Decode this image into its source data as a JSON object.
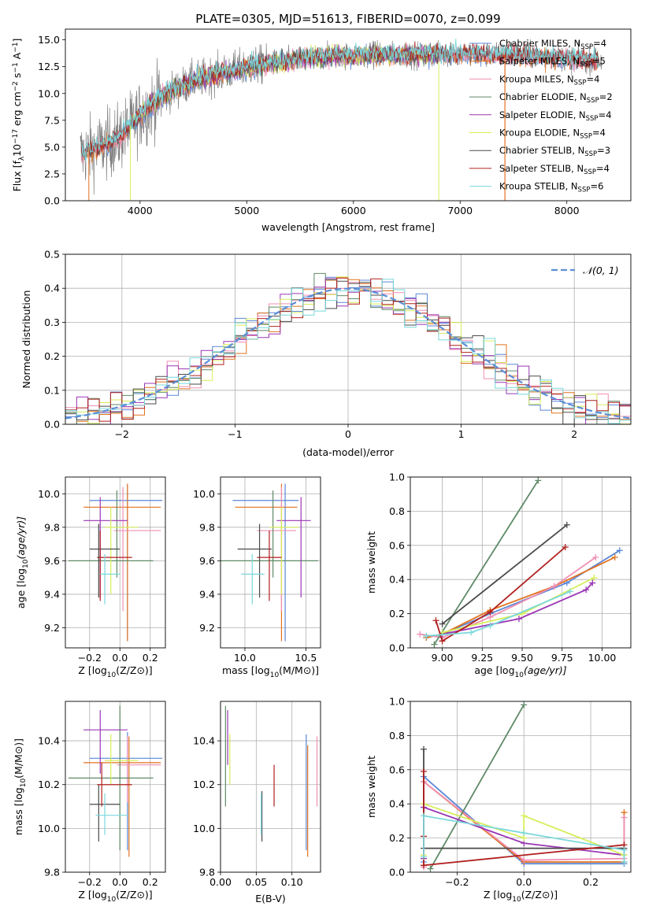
{
  "palette": {
    "Chabrier MILES": "#5b87d6",
    "Salpeter MILES": "#e2721e",
    "Kroupa MILES": "#f08fb4",
    "Chabrier ELODIE": "#5f8a67",
    "Salpeter ELODIE": "#9a36b4",
    "Kroupa ELODIE": "#d6ee5a",
    "Chabrier STELIB": "#4a4a4a",
    "Salpeter STELIB": "#b0201f",
    "Kroupa STELIB": "#7ad8dc",
    "data": "#808080",
    "normal": "#5b8fd6"
  },
  "chart_data": [
    {
      "id": "spectrum",
      "type": "line",
      "title": "PLATE=0305, MJD=51613, FIBERID=0070, z=0.099",
      "xlabel": "wavelength [Angstrom, rest frame]",
      "ylabel": "Flux [f",
      "xlim": [
        3300,
        8600
      ],
      "ylim": [
        0,
        16
      ],
      "xticks": [
        4000,
        5000,
        6000,
        7000,
        8000
      ],
      "yticks": [
        0.0,
        2.5,
        5.0,
        7.5,
        10.0,
        12.5,
        15.0
      ],
      "grid": false,
      "legend_position": "right",
      "continuum_knots": {
        "x": [
          3450,
          3600,
          3800,
          4000,
          4200,
          4500,
          4800,
          5100,
          5400,
          5800,
          6200,
          6600,
          7000,
          7500,
          8000,
          8300
        ],
        "y": [
          4.4,
          4.9,
          5.8,
          8.0,
          9.7,
          11.2,
          12.0,
          12.6,
          13.1,
          13.5,
          13.6,
          13.6,
          13.7,
          13.6,
          13.3,
          13.0
        ]
      },
      "legend": [
        {
          "label": "Chabrier MILES, N",
          "sub": "SSP",
          "tail": "=4",
          "color_key": "Chabrier MILES"
        },
        {
          "label": "Salpeter MILES, N",
          "sub": "SSP",
          "tail": "=5",
          "color_key": "Salpeter MILES"
        },
        {
          "label": "Kroupa MILES, N",
          "sub": "SSP",
          "tail": "=4",
          "color_key": "Kroupa MILES"
        },
        {
          "label": "Chabrier ELODIE, N",
          "sub": "SSP",
          "tail": "=2",
          "color_key": "Chabrier ELODIE"
        },
        {
          "label": "Salpeter ELODIE, N",
          "sub": "SSP",
          "tail": "=4",
          "color_key": "Salpeter ELODIE"
        },
        {
          "label": "Kroupa ELODIE, N",
          "sub": "SSP",
          "tail": "=4",
          "color_key": "Kroupa ELODIE"
        },
        {
          "label": "Chabrier STELIB, N",
          "sub": "SSP",
          "tail": "=3",
          "color_key": "Chabrier STELIB"
        },
        {
          "label": "Salpeter STELIB, N",
          "sub": "SSP",
          "tail": "=4",
          "color_key": "Salpeter STELIB"
        },
        {
          "label": "Kroupa STELIB, N",
          "sub": "SSP",
          "tail": "=6",
          "color_key": "Kroupa STELIB"
        }
      ]
    },
    {
      "id": "residuals",
      "type": "line",
      "xlabel": "(data-model)/error",
      "ylabel": "Normed distribution",
      "xlim": [
        -2.5,
        2.5
      ],
      "ylim": [
        0,
        0.5
      ],
      "xticks": [
        -2,
        -1,
        0,
        1,
        2
      ],
      "yticks": [
        0.0,
        0.1,
        0.2,
        0.3,
        0.4,
        0.5
      ],
      "grid": true,
      "legend_position": "top-right",
      "legend_label": "𝒩(0, 1)",
      "bin_width": 0.1
    },
    {
      "id": "age-vs-Z",
      "type": "scatter",
      "xlabel": "Z [log",
      "ylabel": "age  [log",
      "xlim": [
        -0.36,
        0.3
      ],
      "ylim": [
        9.08,
        10.1
      ],
      "xticks": [
        -0.2,
        0.0,
        0.2
      ],
      "yticks": [
        9.2,
        9.4,
        9.6,
        9.8,
        10.0
      ],
      "grid": true,
      "points": [
        {
          "c": "Chabrier MILES",
          "x": 0.05,
          "xlo": -0.2,
          "xhi": 0.28,
          "y": 9.96,
          "ylo": 9.12,
          "yhi": 10.06
        },
        {
          "c": "Salpeter MILES",
          "x": 0.05,
          "xlo": -0.24,
          "xhi": 0.27,
          "y": 9.92,
          "ylo": 9.12,
          "yhi": 10.06
        },
        {
          "c": "Kroupa MILES",
          "x": 0.02,
          "xlo": -0.04,
          "xhi": 0.27,
          "y": 9.78,
          "ylo": 9.3,
          "yhi": 10.04
        },
        {
          "c": "Chabrier ELODIE",
          "x": -0.02,
          "xlo": -0.34,
          "xhi": 0.22,
          "y": 9.6,
          "ylo": 9.5,
          "yhi": 10.02
        },
        {
          "c": "Salpeter ELODIE",
          "x": -0.13,
          "xlo": -0.24,
          "xhi": 0.05,
          "y": 9.84,
          "ylo": 9.38,
          "yhi": 9.98
        },
        {
          "c": "Kroupa ELODIE",
          "x": -0.06,
          "xlo": -0.1,
          "xhi": 0.12,
          "y": 9.8,
          "ylo": 9.4,
          "yhi": 9.92
        },
        {
          "c": "Chabrier STELIB",
          "x": -0.14,
          "xlo": -0.2,
          "xhi": 0.0,
          "y": 9.67,
          "ylo": 9.38,
          "yhi": 9.82
        },
        {
          "c": "Salpeter STELIB",
          "x": -0.13,
          "xlo": -0.15,
          "xhi": 0.08,
          "y": 9.62,
          "ylo": 9.36,
          "yhi": 9.78
        },
        {
          "c": "Kroupa STELIB",
          "x": -0.1,
          "xlo": -0.13,
          "xhi": 0.0,
          "y": 9.52,
          "ylo": 9.34,
          "yhi": 9.64
        }
      ]
    },
    {
      "id": "age-vs-mass",
      "type": "scatter",
      "xlabel": "mass [log",
      "ylabel": "",
      "xlim": [
        9.8,
        10.62
      ],
      "ylim": [
        9.08,
        10.1
      ],
      "xticks": [
        10.0,
        10.5
      ],
      "yticks": [
        9.2,
        9.4,
        9.6,
        9.8,
        10.0
      ],
      "grid": true,
      "points": [
        {
          "c": "Chabrier MILES",
          "x": 10.33,
          "xlo": 9.9,
          "xhi": 10.44,
          "y": 9.96,
          "ylo": 9.12,
          "yhi": 10.06
        },
        {
          "c": "Salpeter MILES",
          "x": 10.3,
          "xlo": 9.92,
          "xhi": 10.43,
          "y": 9.92,
          "ylo": 9.12,
          "yhi": 10.06
        },
        {
          "c": "Kroupa MILES",
          "x": 10.3,
          "xlo": 10.1,
          "xhi": 10.42,
          "y": 9.78,
          "ylo": 9.3,
          "yhi": 10.04
        },
        {
          "c": "Chabrier ELODIE",
          "x": 10.23,
          "xlo": 9.8,
          "xhi": 10.6,
          "y": 9.6,
          "ylo": 9.5,
          "yhi": 10.02
        },
        {
          "c": "Salpeter ELODIE",
          "x": 10.46,
          "xlo": 10.26,
          "xhi": 10.54,
          "y": 9.84,
          "ylo": 9.38,
          "yhi": 9.98
        },
        {
          "c": "Kroupa ELODIE",
          "x": 10.3,
          "xlo": 10.2,
          "xhi": 10.44,
          "y": 9.8,
          "ylo": 9.4,
          "yhi": 9.92
        },
        {
          "c": "Chabrier STELIB",
          "x": 10.12,
          "xlo": 9.94,
          "xhi": 10.22,
          "y": 9.67,
          "ylo": 9.38,
          "yhi": 9.82
        },
        {
          "c": "Salpeter STELIB",
          "x": 10.2,
          "xlo": 10.1,
          "xhi": 10.3,
          "y": 9.62,
          "ylo": 9.36,
          "yhi": 9.78
        },
        {
          "c": "Kroupa STELIB",
          "x": 10.06,
          "xlo": 9.97,
          "xhi": 10.16,
          "y": 9.52,
          "ylo": 9.34,
          "yhi": 9.64
        }
      ]
    },
    {
      "id": "weight-vs-age",
      "type": "line",
      "xlabel": "age  [log",
      "ylabel": "mass weight",
      "xlim": [
        8.8,
        10.18
      ],
      "ylim": [
        0,
        1
      ],
      "xticks": [
        9.0,
        9.25,
        9.5,
        9.75,
        10.0
      ],
      "yticks": [
        0.0,
        0.2,
        0.4,
        0.6,
        0.8,
        1.0
      ],
      "grid": true,
      "series": [
        {
          "c": "Chabrier MILES",
          "x": [
            8.9,
            9.0,
            9.3,
            9.78,
            10.11
          ],
          "y": [
            0.06,
            0.08,
            0.2,
            0.38,
            0.57
          ]
        },
        {
          "c": "Salpeter MILES",
          "x": [
            8.9,
            9.0,
            9.3,
            9.7,
            10.08
          ],
          "y": [
            0.06,
            0.08,
            0.22,
            0.36,
            0.53
          ]
        },
        {
          "c": "Kroupa MILES",
          "x": [
            8.86,
            9.0,
            9.3,
            9.7,
            9.96
          ],
          "y": [
            0.08,
            0.06,
            0.18,
            0.36,
            0.53
          ]
        },
        {
          "c": "Chabrier ELODIE",
          "x": [
            8.95,
            9.6
          ],
          "y": [
            0.02,
            0.98
          ]
        },
        {
          "c": "Salpeter ELODIE",
          "x": [
            9.0,
            9.48,
            9.9,
            9.94
          ],
          "y": [
            0.08,
            0.17,
            0.34,
            0.38
          ]
        },
        {
          "c": "Kroupa ELODIE",
          "x": [
            9.0,
            9.5,
            9.95
          ],
          "y": [
            0.09,
            0.2,
            0.41
          ]
        },
        {
          "c": "Chabrier STELIB",
          "x": [
            9.0,
            9.78
          ],
          "y": [
            0.14,
            0.72
          ]
        },
        {
          "c": "Salpeter STELIB",
          "x": [
            8.96,
            9.0,
            9.3,
            9.77
          ],
          "y": [
            0.16,
            0.04,
            0.21,
            0.59
          ]
        },
        {
          "c": "Kroupa STELIB",
          "x": [
            8.9,
            9.18,
            9.3,
            9.8
          ],
          "y": [
            0.07,
            0.09,
            0.13,
            0.33
          ]
        }
      ]
    },
    {
      "id": "mass-vs-Z",
      "type": "scatter",
      "xlabel": "Z [log",
      "ylabel": "mass [log",
      "xlim": [
        -0.36,
        0.3
      ],
      "ylim": [
        9.8,
        10.58
      ],
      "xticks": [
        -0.2,
        0.0,
        0.2
      ],
      "yticks": [
        9.8,
        10.0,
        10.2,
        10.4
      ],
      "grid": true,
      "points": [
        {
          "c": "Chabrier MILES",
          "x": 0.05,
          "xlo": -0.2,
          "xhi": 0.28,
          "y": 10.32,
          "ylo": 9.9,
          "yhi": 10.44
        },
        {
          "c": "Salpeter MILES",
          "x": 0.06,
          "xlo": -0.24,
          "xhi": 0.27,
          "y": 10.3,
          "ylo": 9.87,
          "yhi": 10.42
        },
        {
          "c": "Kroupa MILES",
          "x": 0.05,
          "xlo": -0.02,
          "xhi": 0.27,
          "y": 10.29,
          "ylo": 10.12,
          "yhi": 10.42
        },
        {
          "c": "Chabrier ELODIE",
          "x": 0.0,
          "xlo": -0.34,
          "xhi": 0.22,
          "y": 10.23,
          "ylo": 9.9,
          "yhi": 10.56
        },
        {
          "c": "Salpeter ELODIE",
          "x": -0.13,
          "xlo": -0.24,
          "xhi": 0.05,
          "y": 10.45,
          "ylo": 10.25,
          "yhi": 10.54
        },
        {
          "c": "Kroupa ELODIE",
          "x": -0.06,
          "xlo": -0.1,
          "xhi": 0.12,
          "y": 10.31,
          "ylo": 10.2,
          "yhi": 10.43
        },
        {
          "c": "Chabrier STELIB",
          "x": -0.14,
          "xlo": -0.2,
          "xhi": 0.0,
          "y": 10.11,
          "ylo": 9.94,
          "yhi": 10.2
        },
        {
          "c": "Salpeter STELIB",
          "x": -0.12,
          "xlo": -0.15,
          "xhi": 0.08,
          "y": 10.2,
          "ylo": 10.1,
          "yhi": 10.3
        },
        {
          "c": "Kroupa STELIB",
          "x": -0.1,
          "xlo": -0.16,
          "xhi": 0.05,
          "y": 10.06,
          "ylo": 9.97,
          "yhi": 10.16
        }
      ]
    },
    {
      "id": "mass-vs-EBV",
      "type": "scatter",
      "xlabel": "E(B-V)",
      "ylabel": "",
      "xlim": [
        0.0,
        0.14
      ],
      "ylim": [
        9.8,
        10.58
      ],
      "xticks": [
        0.0,
        0.05,
        0.1
      ],
      "yticks": [
        9.8,
        10.0,
        10.2,
        10.4
      ],
      "grid": true,
      "points": [
        {
          "c": "Chabrier MILES",
          "x": 0.12,
          "y": 10.32,
          "ylo": 9.9,
          "yhi": 10.43
        },
        {
          "c": "Salpeter MILES",
          "x": 0.122,
          "y": 10.3,
          "ylo": 9.87,
          "yhi": 10.38
        },
        {
          "c": "Kroupa MILES",
          "x": 0.135,
          "y": 10.29,
          "ylo": 10.1,
          "yhi": 10.42
        },
        {
          "c": "Chabrier ELODIE",
          "x": 0.007,
          "y": 10.23,
          "ylo": 10.1,
          "yhi": 10.56
        },
        {
          "c": "Salpeter ELODIE",
          "x": 0.01,
          "y": 10.45,
          "ylo": 10.29,
          "yhi": 10.54
        },
        {
          "c": "Kroupa ELODIE",
          "x": 0.013,
          "y": 10.31,
          "ylo": 10.2,
          "yhi": 10.43
        },
        {
          "c": "Chabrier STELIB",
          "x": 0.058,
          "y": 10.11,
          "ylo": 9.94,
          "yhi": 10.17
        },
        {
          "c": "Salpeter STELIB",
          "x": 0.075,
          "y": 10.2,
          "ylo": 10.1,
          "yhi": 10.29
        },
        {
          "c": "Kroupa STELIB",
          "x": 0.057,
          "y": 10.06,
          "ylo": 9.97,
          "yhi": 10.16
        }
      ]
    },
    {
      "id": "weight-vs-Z",
      "type": "line",
      "xlabel": "Z [log",
      "ylabel": "mass weight",
      "xlim": [
        -0.34,
        0.32
      ],
      "ylim": [
        0,
        1
      ],
      "xticks": [
        -0.2,
        0.0,
        0.2
      ],
      "yticks": [
        0.0,
        0.2,
        0.4,
        0.6,
        0.8,
        1.0
      ],
      "grid": true,
      "series": [
        {
          "c": "Chabrier MILES",
          "x": [
            -0.3,
            -0.3,
            0.0,
            0.3,
            0.3
          ],
          "y": [
            0.06,
            0.56,
            0.05,
            0.05,
            0.1
          ]
        },
        {
          "c": "Salpeter MILES",
          "x": [
            -0.3,
            -0.3,
            0.0,
            0.3,
            0.3
          ],
          "y": [
            0.08,
            0.53,
            0.06,
            0.06,
            0.35
          ]
        },
        {
          "c": "Kroupa MILES",
          "x": [
            -0.3,
            -0.3,
            0.0,
            0.3,
            0.3
          ],
          "y": [
            0.03,
            0.53,
            0.07,
            0.08,
            0.32
          ]
        },
        {
          "c": "Chabrier ELODIE",
          "x": [
            -0.28,
            0.0
          ],
          "y": [
            0.02,
            0.98
          ]
        },
        {
          "c": "Salpeter ELODIE",
          "x": [
            -0.3,
            -0.3,
            0.0,
            0.3
          ],
          "y": [
            0.08,
            0.38,
            0.17,
            0.1
          ]
        },
        {
          "c": "Kroupa ELODIE",
          "x": [
            -0.3,
            -0.3,
            0.0,
            0.0,
            0.3
          ],
          "y": [
            0.1,
            0.4,
            0.2,
            0.33,
            0.1
          ]
        },
        {
          "c": "Chabrier STELIB",
          "x": [
            -0.3,
            -0.3,
            0.3
          ],
          "y": [
            0.72,
            0.14,
            0.14
          ]
        },
        {
          "c": "Salpeter STELIB",
          "x": [
            -0.3,
            -0.3,
            -0.3,
            0.3
          ],
          "y": [
            0.59,
            0.21,
            0.04,
            0.16
          ]
        },
        {
          "c": "Kroupa STELIB",
          "x": [
            -0.3,
            -0.3,
            0.0,
            0.3,
            0.3
          ],
          "y": [
            0.09,
            0.33,
            0.23,
            0.13,
            0.06
          ]
        }
      ]
    }
  ]
}
